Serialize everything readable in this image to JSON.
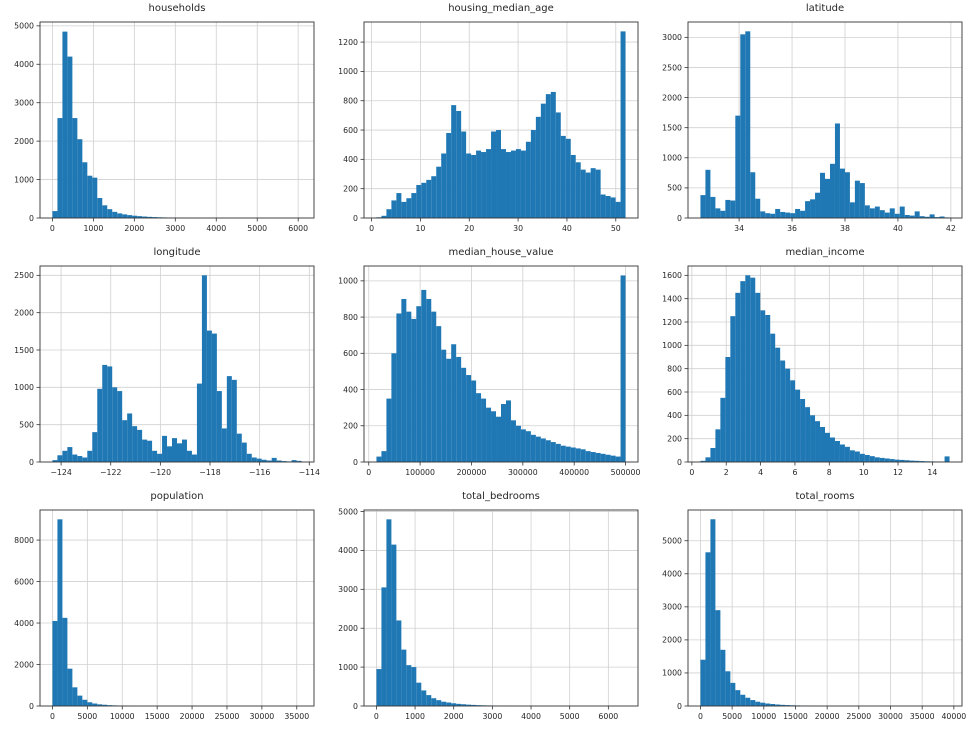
{
  "figure": {
    "background": "#ffffff",
    "bar_color": "#1f77b4",
    "grid_color": "#d0d0d0",
    "spine_color": "#333333",
    "text_color": "#262626"
  },
  "chart_data": [
    {
      "type": "bar",
      "title": "households",
      "bin_start": 1,
      "bin_width": 121.62,
      "xlim": [
        -303,
        6386
      ],
      "ylim": [
        0,
        5100
      ],
      "xticks": [
        0,
        1000,
        2000,
        3000,
        4000,
        5000,
        6000
      ],
      "yticks": [
        0,
        1000,
        2000,
        3000,
        4000,
        5000
      ],
      "values": [
        180,
        2600,
        4850,
        4200,
        2600,
        2050,
        1450,
        1100,
        1050,
        520,
        330,
        230,
        160,
        120,
        95,
        75,
        60,
        48,
        38,
        30,
        24,
        19,
        15,
        12,
        10,
        8,
        7,
        6,
        5,
        4,
        3,
        3,
        2,
        2,
        2,
        1,
        1,
        1,
        1,
        0,
        0,
        1,
        0,
        0,
        0,
        0,
        0,
        0,
        0,
        1
      ]
    },
    {
      "type": "bar",
      "title": "housing_median_age",
      "bin_start": 1,
      "bin_width": 1.02,
      "xlim": [
        -1.55,
        54.55
      ],
      "ylim": [
        0,
        1337
      ],
      "xticks": [
        0,
        10,
        20,
        30,
        40,
        50
      ],
      "yticks": [
        0,
        200,
        400,
        600,
        800,
        1000,
        1200
      ],
      "values": [
        5,
        15,
        60,
        120,
        170,
        110,
        135,
        170,
        225,
        240,
        260,
        285,
        350,
        440,
        580,
        770,
        730,
        590,
        440,
        430,
        460,
        450,
        470,
        590,
        600,
        470,
        450,
        460,
        470,
        460,
        520,
        600,
        690,
        780,
        845,
        860,
        720,
        560,
        540,
        430,
        380,
        330,
        310,
        340,
        330,
        160,
        150,
        140,
        110,
        1273
      ]
    },
    {
      "type": "bar",
      "title": "latitude",
      "bin_start": 32.54,
      "bin_width": 0.1882,
      "xlim": [
        32.07,
        42.42
      ],
      "ylim": [
        0,
        3255
      ],
      "xticks": [
        34,
        36,
        38,
        40,
        42
      ],
      "yticks": [
        0,
        500,
        1000,
        1500,
        2000,
        2500,
        3000
      ],
      "values": [
        380,
        800,
        350,
        160,
        120,
        300,
        290,
        1700,
        3050,
        3100,
        760,
        320,
        110,
        80,
        70,
        150,
        100,
        90,
        80,
        150,
        120,
        280,
        310,
        420,
        750,
        650,
        900,
        1570,
        820,
        760,
        260,
        620,
        580,
        210,
        160,
        190,
        130,
        90,
        160,
        70,
        190,
        50,
        40,
        110,
        30,
        20,
        60,
        15,
        25,
        10
      ]
    },
    {
      "type": "bar",
      "title": "longitude",
      "bin_start": -124.35,
      "bin_width": 0.2008,
      "xlim": [
        -124.85,
        -113.81
      ],
      "ylim": [
        0,
        2625
      ],
      "xticks": [
        -124,
        -122,
        -120,
        -118,
        -116,
        -114
      ],
      "yticks": [
        0,
        500,
        1000,
        1500,
        2000,
        2500
      ],
      "values": [
        25,
        90,
        150,
        200,
        100,
        80,
        60,
        150,
        400,
        980,
        1300,
        1280,
        1000,
        950,
        560,
        650,
        480,
        430,
        300,
        285,
        150,
        110,
        350,
        210,
        320,
        250,
        300,
        150,
        100,
        1050,
        2500,
        1760,
        1720,
        950,
        450,
        1150,
        1100,
        380,
        260,
        110,
        60,
        45,
        30,
        20,
        55,
        20,
        12,
        8,
        25,
        15
      ]
    },
    {
      "type": "bar",
      "title": "median_house_value",
      "bin_start": 14999,
      "bin_width": 9700,
      "xlim": [
        -9251,
        524251
      ],
      "ylim": [
        0,
        1082
      ],
      "xticks": [
        0,
        100000,
        200000,
        300000,
        400000,
        500000
      ],
      "yticks": [
        0,
        200,
        400,
        600,
        800,
        1000
      ],
      "values": [
        30,
        60,
        350,
        600,
        820,
        900,
        830,
        790,
        860,
        950,
        900,
        830,
        750,
        620,
        570,
        650,
        580,
        520,
        480,
        450,
        380,
        350,
        300,
        280,
        250,
        320,
        340,
        230,
        200,
        180,
        170,
        150,
        140,
        130,
        120,
        110,
        100,
        90,
        85,
        80,
        75,
        70,
        60,
        55,
        50,
        45,
        40,
        35,
        30,
        1030
      ]
    },
    {
      "type": "bar",
      "title": "median_income",
      "bin_start": 0.5,
      "bin_width": 0.29,
      "xlim": [
        -0.225,
        15.725
      ],
      "ylim": [
        0,
        1680
      ],
      "xticks": [
        0,
        2,
        4,
        6,
        8,
        10,
        12,
        14
      ],
      "yticks": [
        0,
        200,
        400,
        600,
        800,
        1000,
        1200,
        1400,
        1600
      ],
      "values": [
        10,
        40,
        120,
        280,
        550,
        900,
        1250,
        1450,
        1550,
        1600,
        1580,
        1450,
        1300,
        1260,
        1100,
        980,
        870,
        800,
        700,
        620,
        540,
        470,
        400,
        350,
        300,
        250,
        210,
        180,
        150,
        130,
        100,
        90,
        70,
        60,
        50,
        40,
        35,
        30,
        25,
        20,
        18,
        15,
        12,
        10,
        8,
        6,
        5,
        4,
        3,
        48
      ]
    },
    {
      "type": "bar",
      "title": "population",
      "bin_start": 3,
      "bin_width": 713.6,
      "xlim": [
        -1781,
        37466
      ],
      "ylim": [
        0,
        9450
      ],
      "xticks": [
        0,
        5000,
        10000,
        15000,
        20000,
        25000,
        30000,
        35000
      ],
      "yticks": [
        0,
        2000,
        4000,
        6000,
        8000
      ],
      "values": [
        4100,
        9000,
        4250,
        1800,
        900,
        500,
        300,
        180,
        120,
        80,
        60,
        40,
        30,
        22,
        16,
        12,
        9,
        7,
        5,
        4,
        3,
        3,
        2,
        2,
        1,
        1,
        1,
        1,
        1,
        0,
        0,
        0,
        1,
        0,
        0,
        0,
        0,
        0,
        0,
        0,
        0,
        0,
        0,
        0,
        0,
        0,
        0,
        0,
        0,
        1
      ]
    },
    {
      "type": "bar",
      "title": "total_bedrooms",
      "bin_start": 1,
      "bin_width": 128.9,
      "xlim": [
        -321,
        6767
      ],
      "ylim": [
        0,
        5040
      ],
      "xticks": [
        0,
        1000,
        2000,
        3000,
        4000,
        5000,
        6000
      ],
      "yticks": [
        0,
        1000,
        2000,
        3000,
        4000,
        5000
      ],
      "values": [
        950,
        3050,
        4800,
        4150,
        2200,
        1450,
        1050,
        1000,
        600,
        400,
        280,
        200,
        150,
        110,
        90,
        70,
        55,
        45,
        35,
        28,
        22,
        18,
        15,
        12,
        10,
        8,
        7,
        6,
        5,
        4,
        3,
        3,
        2,
        2,
        2,
        1,
        1,
        1,
        1,
        1,
        0,
        0,
        1,
        0,
        0,
        0,
        0,
        0,
        0,
        1
      ]
    },
    {
      "type": "bar",
      "title": "total_rooms",
      "bin_start": 2,
      "bin_width": 786.4,
      "xlim": [
        -1964,
        41286
      ],
      "ylim": [
        0,
        5930
      ],
      "xticks": [
        0,
        5000,
        10000,
        15000,
        20000,
        25000,
        30000,
        35000,
        40000
      ],
      "yticks": [
        0,
        1000,
        2000,
        3000,
        4000,
        5000
      ],
      "values": [
        1400,
        4650,
        5650,
        2900,
        1700,
        1050,
        700,
        480,
        340,
        250,
        180,
        130,
        100,
        75,
        60,
        45,
        35,
        28,
        22,
        18,
        14,
        11,
        9,
        7,
        6,
        5,
        4,
        3,
        3,
        2,
        2,
        2,
        1,
        1,
        1,
        1,
        0,
        1,
        0,
        0,
        1,
        0,
        0,
        0,
        0,
        0,
        0,
        0,
        0,
        1
      ]
    }
  ]
}
